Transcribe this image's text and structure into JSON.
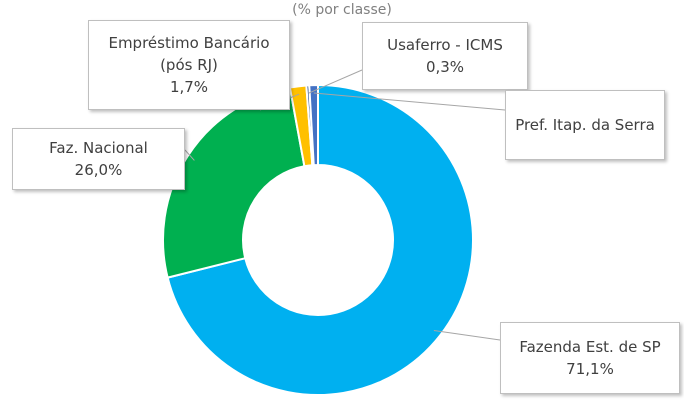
{
  "chart_data": {
    "type": "pie",
    "subtitle": "(% por classe)",
    "categories": [
      "Fazenda Est. de SP",
      "Faz. Nacional",
      "Empréstimo Bancário (pós RJ)",
      "Usaferro - ICMS",
      "Pref. Itap. da Serra"
    ],
    "values": [
      71.1,
      26.0,
      1.7,
      0.3,
      0.9
    ],
    "value_labels": [
      "71,1%",
      "26,0%",
      "1,7%",
      "0,3%",
      null
    ],
    "colors": [
      "#00b0f0",
      "#00b050",
      "#ffc000",
      "#2f5597",
      "#4472c4"
    ]
  }
}
